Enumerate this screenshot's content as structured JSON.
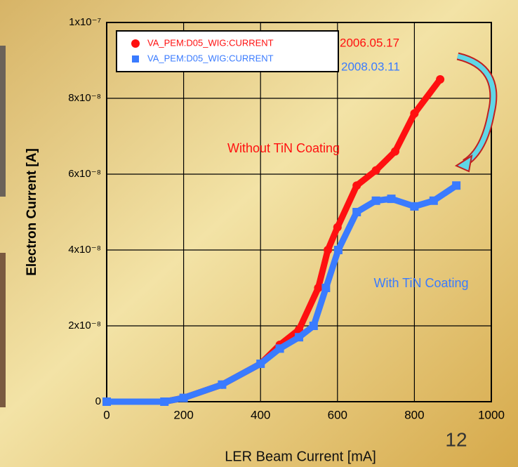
{
  "chart_data": {
    "type": "line",
    "xlabel": "LER Beam Current [mA]",
    "ylabel": "Electron Current [A]",
    "xlim": [
      0,
      1000
    ],
    "xticks": [
      0,
      200,
      400,
      600,
      800,
      1000
    ],
    "ylim": [
      0,
      1e-07
    ],
    "yticks": [
      0,
      {
        "value": 2e-08,
        "label": "2x10⁻⁸"
      },
      {
        "value": 4e-08,
        "label": "4x10⁻⁸"
      },
      {
        "value": 6e-08,
        "label": "6x10⁻⁸"
      },
      {
        "value": 8e-08,
        "label": "8x10⁻⁸"
      },
      {
        "value": 1e-07,
        "label": "1x10⁻⁷"
      }
    ],
    "grid": true,
    "legend": "upper left",
    "series": [
      {
        "name": "VA_PEM:D05_WIG:CURRENT",
        "color": "#ff1010",
        "marker": "circle",
        "x": [
          0,
          150,
          200,
          300,
          400,
          450,
          500,
          550,
          575,
          600,
          650,
          700,
          750,
          800,
          867
        ],
        "values": [
          0,
          0,
          1e-09,
          4.5e-09,
          1e-08,
          1.5e-08,
          1.9e-08,
          3e-08,
          4e-08,
          4.6e-08,
          5.7e-08,
          6.1e-08,
          6.6e-08,
          7.6e-08,
          8.5e-08
        ]
      },
      {
        "name": "VA_PEM:D05_WIG:CURRENT",
        "color": "#3a7bff",
        "marker": "square",
        "x": [
          0,
          150,
          200,
          300,
          400,
          450,
          500,
          538,
          570,
          602,
          650,
          700,
          740,
          800,
          850,
          909
        ],
        "values": [
          0,
          0,
          1e-09,
          4.5e-09,
          1e-08,
          1.4e-08,
          1.7e-08,
          2e-08,
          3e-08,
          4e-08,
          5e-08,
          5.3e-08,
          5.35e-08,
          5.15e-08,
          5.3e-08,
          5.7e-08
        ]
      }
    ],
    "annotations": [
      {
        "text": "2006.05.17",
        "color": "#ff1010"
      },
      {
        "text": "2008.03.11",
        "color": "#3a7bff"
      },
      {
        "text": "Without TiN Coating",
        "color": "#ff1010"
      },
      {
        "text": "With TiN Coating",
        "color": "#3a7bff"
      }
    ],
    "slide_number": "12"
  }
}
